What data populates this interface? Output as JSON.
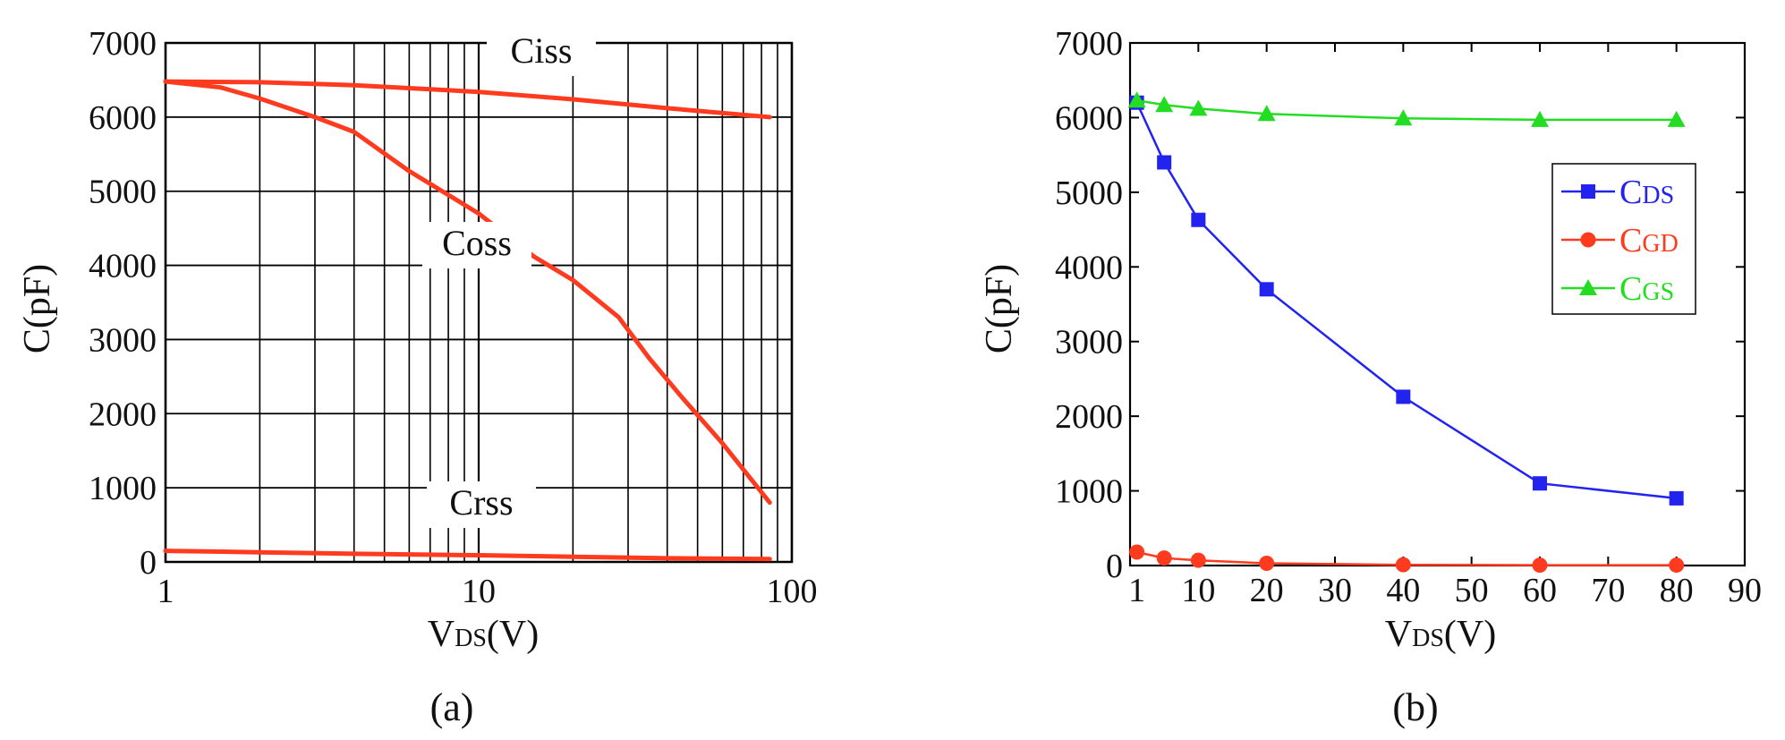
{
  "chart_data": [
    {
      "type": "line",
      "caption": "(a)",
      "xscale": "log",
      "xlim": [
        1,
        100
      ],
      "ylim": [
        0,
        7000
      ],
      "xticks": [
        1,
        10,
        100
      ],
      "xtick_labels": [
        "1",
        "10",
        "100"
      ],
      "yticks": [
        0,
        1000,
        2000,
        3000,
        4000,
        5000,
        6000,
        7000
      ],
      "ytick_labels": [
        "0",
        "1000",
        "2000",
        "3000",
        "4000",
        "5000",
        "6000",
        "7000"
      ],
      "xlabel_main": "V",
      "xlabel_sub": "DS",
      "xlabel_tail": "(V)",
      "ylabel": "C(pF)",
      "grid": true,
      "color": "#ff3b1f",
      "series": [
        {
          "name": "Ciss",
          "x": [
            1,
            2,
            4,
            10,
            20,
            40,
            85
          ],
          "values": [
            6480,
            6470,
            6430,
            6340,
            6240,
            6120,
            6000
          ]
        },
        {
          "name": "Coss",
          "x": [
            1,
            1.5,
            2,
            3,
            4,
            6,
            8,
            10,
            15,
            20,
            28,
            35,
            45,
            60,
            85
          ],
          "values": [
            6480,
            6400,
            6250,
            6000,
            5800,
            5270,
            4950,
            4700,
            4120,
            3800,
            3300,
            2750,
            2200,
            1600,
            800
          ]
        },
        {
          "name": "Crss",
          "x": [
            1,
            2,
            4,
            10,
            20,
            40,
            85
          ],
          "values": [
            150,
            130,
            110,
            90,
            70,
            50,
            40
          ]
        }
      ]
    },
    {
      "type": "line",
      "caption": "(b)",
      "xlim": [
        0,
        90
      ],
      "ylim": [
        0,
        7000
      ],
      "xticks": [
        1,
        10,
        20,
        30,
        40,
        50,
        60,
        70,
        80,
        90
      ],
      "xtick_labels": [
        "1",
        "10",
        "20",
        "30",
        "40",
        "50",
        "60",
        "70",
        "80",
        "90"
      ],
      "yticks": [
        0,
        1000,
        2000,
        3000,
        4000,
        5000,
        6000,
        7000
      ],
      "ytick_labels": [
        "0",
        "1000",
        "2000",
        "3000",
        "4000",
        "5000",
        "6000",
        "7000"
      ],
      "xlabel_main": "V",
      "xlabel_sub": "DS",
      "xlabel_tail": "(V)",
      "ylabel": "C(pF)",
      "grid": false,
      "legend_position": "right",
      "x": [
        1,
        5,
        10,
        20,
        40,
        60,
        80
      ],
      "series": [
        {
          "name_main": "C",
          "name_sub": "DS",
          "color": "#2323f0",
          "marker": "square",
          "values": [
            6200,
            5400,
            4630,
            3700,
            2260,
            1100,
            900
          ]
        },
        {
          "name_main": "C",
          "name_sub": "GD",
          "color": "#ff3b1f",
          "marker": "circle",
          "values": [
            180,
            100,
            70,
            30,
            10,
            5,
            5
          ]
        },
        {
          "name_main": "C",
          "name_sub": "GS",
          "color": "#22dd22",
          "marker": "triangle",
          "values": [
            6230,
            6170,
            6120,
            6050,
            5990,
            5970,
            5970
          ]
        }
      ]
    }
  ]
}
